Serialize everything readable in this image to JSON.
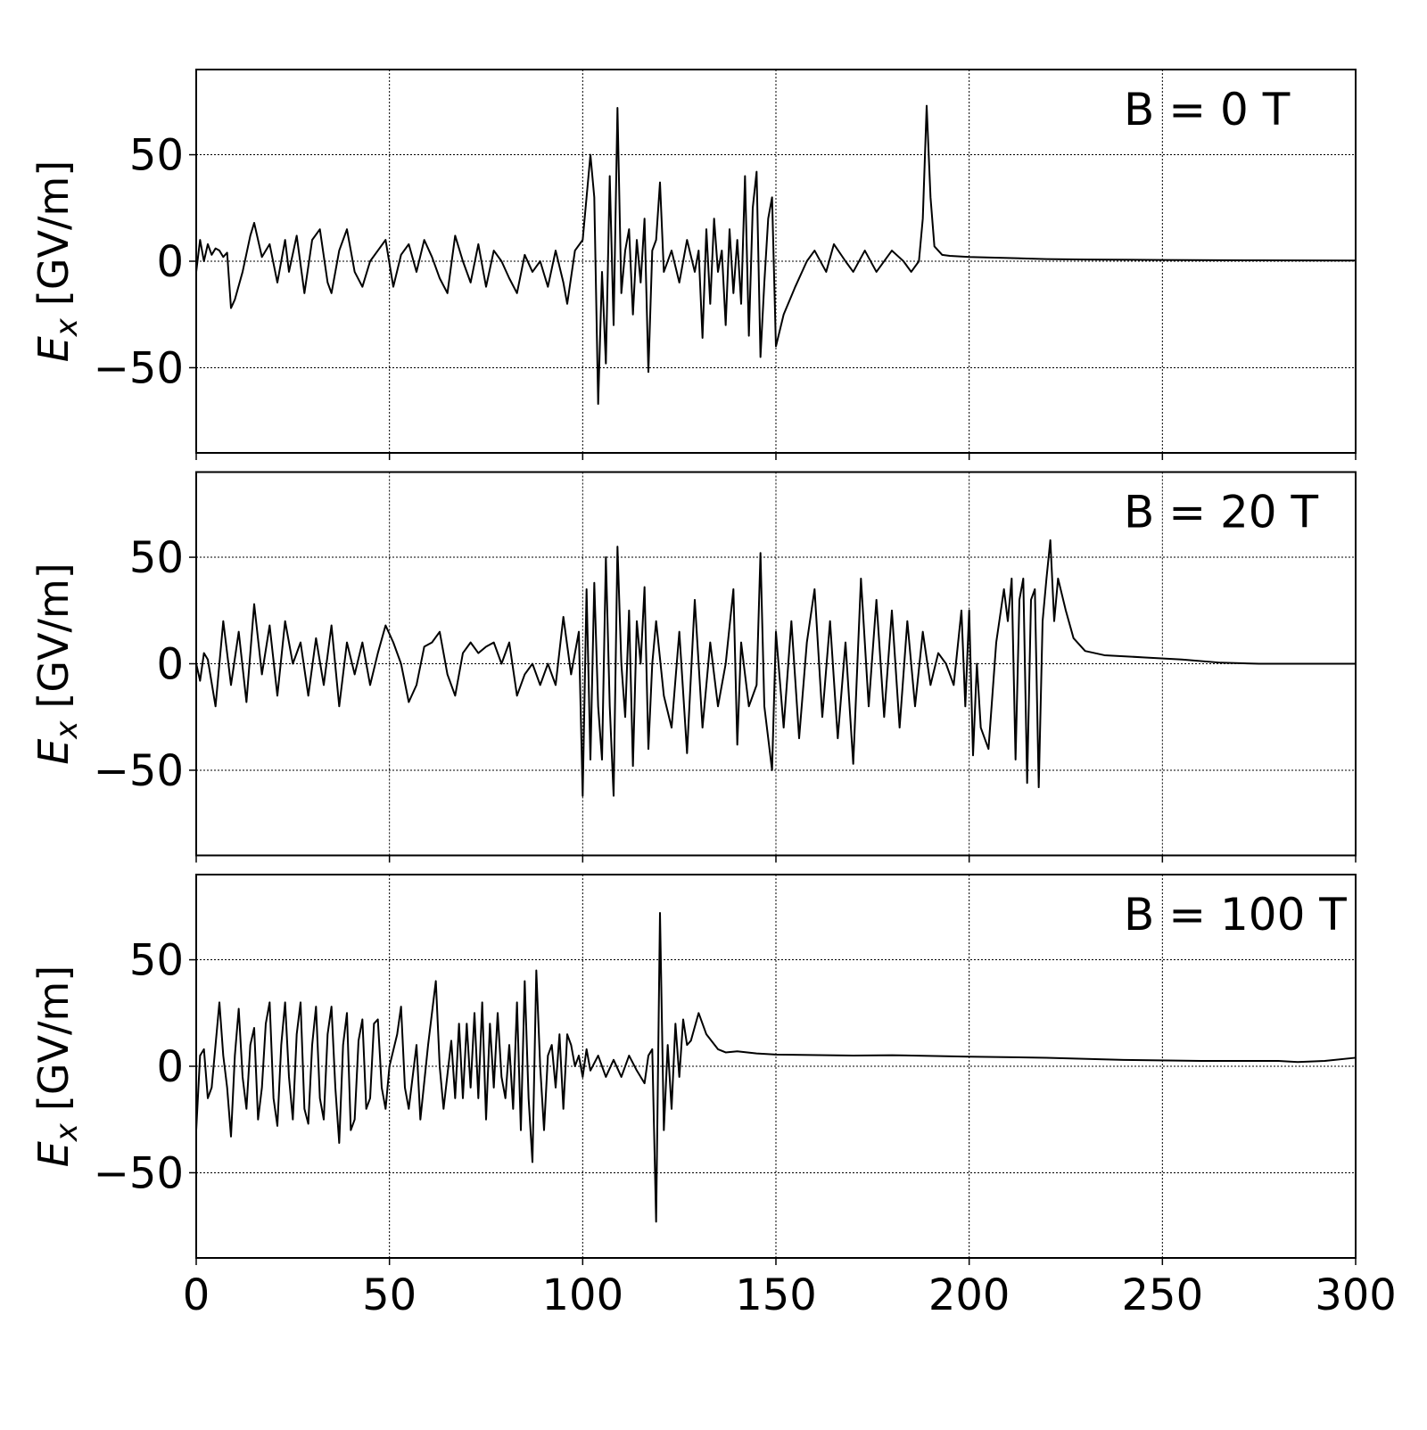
{
  "chart_data": [
    {
      "type": "line",
      "annotation": "B = 0 T",
      "ylabel": "E",
      "ylabel_subscript": "x",
      "ylabel_unit": "[GV/m]",
      "xlim": [
        0,
        300
      ],
      "xticks": [
        0,
        50,
        100,
        150,
        200,
        250,
        300
      ],
      "ylim": [
        -90,
        90
      ],
      "yticks": [
        {
          "value": -50,
          "label": "−50"
        },
        0,
        50
      ],
      "grid": true,
      "color": "#000000",
      "x": [
        0,
        1,
        2,
        3,
        4,
        5,
        6,
        7,
        8,
        9,
        10,
        12,
        14,
        15,
        17,
        19,
        21,
        23,
        24,
        26,
        28,
        30,
        32,
        34,
        35,
        37,
        39,
        41,
        43,
        45,
        47,
        49,
        51,
        53,
        55,
        57,
        59,
        61,
        63,
        65,
        67,
        69,
        71,
        73,
        75,
        77,
        79,
        81,
        83,
        85,
        87,
        89,
        91,
        93,
        95,
        96,
        98,
        100,
        101,
        102,
        103,
        104,
        105,
        106,
        107,
        108,
        109,
        110,
        111,
        112,
        113,
        114,
        115,
        116,
        117,
        118,
        119,
        120,
        121,
        123,
        125,
        127,
        129,
        130,
        131,
        132,
        133,
        134,
        135,
        136,
        137,
        138,
        139,
        140,
        141,
        142,
        143,
        144,
        145,
        146,
        147,
        148,
        149,
        150,
        152,
        155,
        158,
        160,
        163,
        165,
        168,
        170,
        173,
        176,
        180,
        183,
        185,
        187,
        188,
        189,
        190,
        191,
        193,
        195,
        200,
        210,
        220,
        230,
        250,
        275,
        300
      ],
      "values": [
        -5,
        10,
        0,
        8,
        3,
        6,
        5,
        2,
        4,
        -22,
        -18,
        -5,
        12,
        18,
        2,
        8,
        -10,
        10,
        -5,
        12,
        -15,
        10,
        15,
        -10,
        -15,
        5,
        15,
        -5,
        -12,
        0,
        5,
        10,
        -12,
        3,
        8,
        -5,
        10,
        2,
        -8,
        -15,
        12,
        0,
        -10,
        8,
        -12,
        5,
        0,
        -8,
        -15,
        3,
        -5,
        0,
        -12,
        5,
        -10,
        -20,
        5,
        10,
        30,
        50,
        30,
        -67,
        -5,
        -48,
        40,
        -30,
        72,
        -15,
        5,
        15,
        -25,
        10,
        -10,
        20,
        -52,
        5,
        10,
        37,
        -5,
        5,
        -10,
        10,
        -5,
        5,
        -36,
        15,
        -20,
        20,
        -5,
        5,
        -30,
        15,
        -15,
        10,
        -20,
        40,
        -35,
        25,
        42,
        -45,
        -10,
        20,
        30,
        -40,
        -25,
        -12,
        0,
        5,
        -5,
        8,
        0,
        -5,
        5,
        -5,
        5,
        0,
        -5,
        0,
        20,
        73,
        30,
        7,
        3,
        2.5,
        2,
        1.5,
        1,
        0.8,
        0.6,
        0.4,
        0.3
      ]
    },
    {
      "type": "line",
      "annotation": "B = 20 T",
      "ylabel": "E",
      "ylabel_subscript": "x",
      "ylabel_unit": "[GV/m]",
      "xlim": [
        0,
        300
      ],
      "xticks": [
        0,
        50,
        100,
        150,
        200,
        250,
        300
      ],
      "ylim": [
        -90,
        90
      ],
      "yticks": [
        {
          "value": -50,
          "label": "−50"
        },
        0,
        50
      ],
      "grid": true,
      "color": "#000000",
      "x": [
        0,
        1,
        2,
        3,
        5,
        7,
        9,
        11,
        13,
        15,
        17,
        19,
        21,
        23,
        25,
        27,
        29,
        31,
        33,
        35,
        37,
        39,
        41,
        43,
        45,
        47,
        49,
        51,
        53,
        55,
        57,
        59,
        61,
        63,
        65,
        67,
        69,
        71,
        73,
        75,
        77,
        79,
        81,
        83,
        85,
        87,
        89,
        91,
        93,
        95,
        97,
        99,
        100,
        101,
        102,
        103,
        104,
        105,
        106,
        107,
        108,
        109,
        110,
        111,
        112,
        113,
        114,
        115,
        116,
        117,
        118,
        119,
        121,
        123,
        125,
        127,
        129,
        131,
        133,
        135,
        137,
        139,
        140,
        141,
        143,
        145,
        146,
        147,
        149,
        150,
        152,
        154,
        156,
        158,
        160,
        162,
        164,
        166,
        168,
        170,
        172,
        174,
        176,
        178,
        180,
        182,
        184,
        186,
        188,
        190,
        192,
        194,
        196,
        198,
        199,
        200,
        201,
        202,
        203,
        205,
        207,
        209,
        210,
        211,
        212,
        213,
        214,
        215,
        216,
        217,
        218,
        219,
        220,
        221,
        222,
        223,
        225,
        227,
        230,
        235,
        245,
        255,
        265,
        275,
        300
      ],
      "values": [
        0,
        -8,
        5,
        2,
        -20,
        20,
        -10,
        15,
        -18,
        28,
        -5,
        18,
        -15,
        20,
        0,
        10,
        -15,
        12,
        -10,
        18,
        -20,
        10,
        -5,
        10,
        -10,
        5,
        18,
        10,
        0,
        -18,
        -10,
        8,
        10,
        15,
        -5,
        -15,
        5,
        10,
        5,
        8,
        10,
        0,
        10,
        -15,
        -5,
        0,
        -10,
        0,
        -10,
        22,
        -5,
        15,
        -62,
        35,
        -45,
        38,
        -20,
        -45,
        50,
        -20,
        -62,
        55,
        0,
        -25,
        25,
        -48,
        20,
        0,
        36,
        -40,
        0,
        20,
        -15,
        -30,
        15,
        -42,
        30,
        -30,
        10,
        -20,
        0,
        35,
        -38,
        10,
        -20,
        -10,
        52,
        -20,
        -50,
        15,
        -30,
        20,
        -35,
        10,
        35,
        -25,
        20,
        -35,
        10,
        -47,
        40,
        -20,
        30,
        -25,
        25,
        -30,
        20,
        -20,
        15,
        -10,
        5,
        0,
        -10,
        25,
        -20,
        25,
        -43,
        0,
        -30,
        -40,
        10,
        35,
        20,
        40,
        -45,
        30,
        40,
        -56,
        30,
        35,
        -58,
        20,
        40,
        58,
        20,
        40,
        25,
        12,
        6,
        4,
        3,
        2,
        0.5,
        0,
        0
      ]
    },
    {
      "type": "line",
      "annotation": "B = 100 T",
      "ylabel": "E",
      "ylabel_subscript": "x",
      "ylabel_unit": "[GV/m]",
      "xlim": [
        0,
        300
      ],
      "xticks": [
        0,
        50,
        100,
        150,
        200,
        250,
        300
      ],
      "ylim": [
        -90,
        90
      ],
      "yticks": [
        {
          "value": -50,
          "label": "−50"
        },
        0,
        50
      ],
      "grid": true,
      "color": "#000000",
      "x": [
        0,
        1,
        2,
        3,
        4,
        5,
        6,
        7,
        8,
        9,
        10,
        11,
        12,
        13,
        14,
        15,
        16,
        17,
        18,
        19,
        20,
        21,
        22,
        23,
        24,
        25,
        26,
        27,
        28,
        29,
        30,
        31,
        32,
        33,
        34,
        35,
        36,
        37,
        38,
        39,
        40,
        41,
        42,
        43,
        44,
        45,
        46,
        47,
        48,
        49,
        50,
        52,
        53,
        54,
        55,
        57,
        58,
        60,
        62,
        63,
        64,
        66,
        67,
        68,
        69,
        70,
        71,
        72,
        73,
        74,
        75,
        76,
        77,
        78,
        79,
        80,
        81,
        82,
        83,
        84,
        85,
        86,
        87,
        88,
        89,
        90,
        91,
        92,
        93,
        94,
        95,
        96,
        97,
        98,
        99,
        100,
        101,
        102,
        104,
        106,
        108,
        110,
        112,
        114,
        116,
        117,
        118,
        119,
        120,
        121,
        122,
        123,
        124,
        125,
        126,
        127,
        128,
        130,
        132,
        135,
        137,
        140,
        145,
        150,
        170,
        180,
        200,
        220,
        240,
        260,
        280,
        285,
        292,
        300
      ],
      "values": [
        -30,
        5,
        8,
        -15,
        -10,
        10,
        30,
        5,
        -10,
        -33,
        5,
        27,
        -5,
        -20,
        10,
        18,
        -25,
        -10,
        20,
        30,
        -15,
        -28,
        10,
        30,
        -5,
        -25,
        15,
        30,
        -20,
        -27,
        10,
        28,
        -15,
        -25,
        15,
        28,
        -10,
        -36,
        10,
        25,
        -30,
        -25,
        12,
        22,
        -20,
        -15,
        20,
        22,
        -10,
        -20,
        0,
        15,
        28,
        -10,
        -20,
        10,
        -25,
        10,
        40,
        0,
        -20,
        12,
        -15,
        20,
        -15,
        20,
        -10,
        25,
        -15,
        30,
        -25,
        20,
        -10,
        25,
        -5,
        -15,
        10,
        -20,
        30,
        -30,
        40,
        -15,
        -45,
        45,
        0,
        -30,
        5,
        10,
        -10,
        15,
        -20,
        15,
        10,
        0,
        5,
        -5,
        8,
        -2,
        5,
        -5,
        3,
        -5,
        5,
        -2,
        -8,
        5,
        8,
        -73,
        72,
        -30,
        10,
        -20,
        20,
        -5,
        22,
        10,
        12,
        25,
        15,
        8,
        6.5,
        7,
        6,
        5.5,
        5,
        5.2,
        4.5,
        4,
        3,
        2.5,
        2.5,
        2,
        2.5,
        4
      ]
    }
  ]
}
